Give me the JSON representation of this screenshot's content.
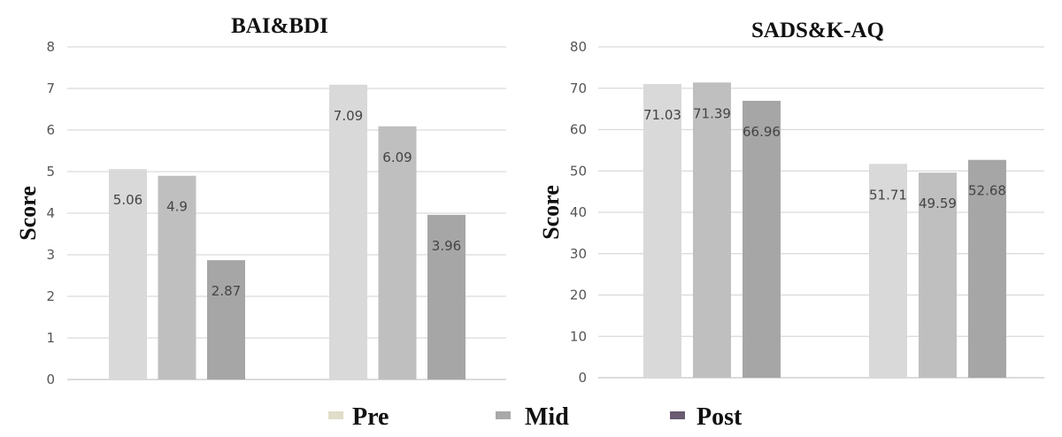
{
  "chart_data": [
    {
      "type": "bar",
      "title": "BAI&BDI",
      "ylabel": "Score",
      "xlabel": "",
      "ylim": [
        0,
        8
      ],
      "yticks": [
        0,
        1,
        2,
        3,
        4,
        5,
        6,
        7,
        8
      ],
      "grid": true,
      "group_count": 2,
      "series": [
        {
          "name": "Pre",
          "values": [
            5.06,
            7.09
          ],
          "labels": [
            "5.06",
            "7.09"
          ]
        },
        {
          "name": "Mid",
          "values": [
            4.9,
            6.09
          ],
          "labels": [
            "4.9",
            "6.09"
          ]
        },
        {
          "name": "Post",
          "values": [
            2.87,
            3.96
          ],
          "labels": [
            "2.87",
            "3.96"
          ]
        }
      ]
    },
    {
      "type": "bar",
      "title": "SADS&K-AQ",
      "ylabel": "Score",
      "xlabel": "",
      "ylim": [
        0,
        80
      ],
      "yticks": [
        0,
        10,
        20,
        30,
        40,
        50,
        60,
        70,
        80
      ],
      "grid": true,
      "group_count": 2,
      "series": [
        {
          "name": "Pre",
          "values": [
            71.03,
            51.71
          ],
          "labels": [
            "71.03",
            "51.71"
          ]
        },
        {
          "name": "Mid",
          "values": [
            71.39,
            49.59
          ],
          "labels": [
            "71.39",
            "49.59"
          ]
        },
        {
          "name": "Post",
          "values": [
            66.96,
            52.68
          ],
          "labels": [
            "66.96",
            "52.68"
          ]
        }
      ]
    }
  ],
  "colors": {
    "bar_pre": "#d9d9d9",
    "bar_mid": "#bfbfbf",
    "bar_post": "#a6a6a6"
  },
  "legend": {
    "placement": "bottom-center",
    "items": [
      {
        "label": "Pre",
        "color": "#e0ddc8"
      },
      {
        "label": "Mid",
        "color": "#a9a9a9"
      },
      {
        "label": "Post",
        "color": "#6a5a72"
      }
    ]
  }
}
